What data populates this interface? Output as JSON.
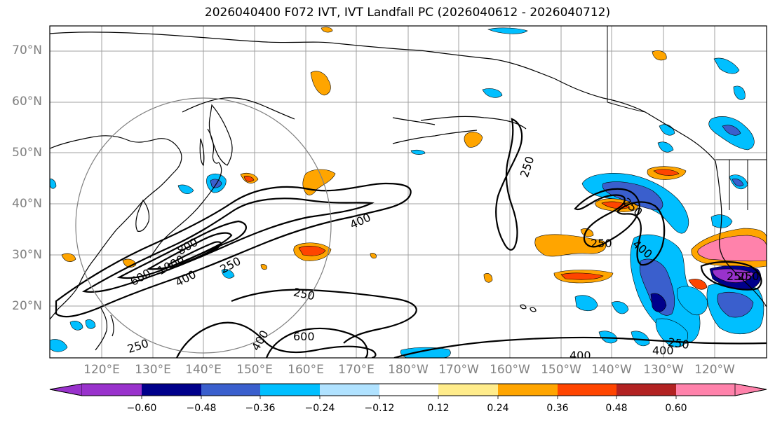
{
  "title": "2026040400 F072 IVT, IVT Landfall PC (2026040612 - 2026040712)",
  "lat_labels": [
    "70°N",
    "60°N",
    "50°N",
    "40°N",
    "30°N",
    "20°N"
  ],
  "lon_labels": [
    "120°E",
    "130°E",
    "140°E",
    "150°E",
    "160°E",
    "170°E",
    "180°W",
    "170°W",
    "160°W",
    "150°W",
    "140°W",
    "130°W",
    "120°W"
  ],
  "colorbar": {
    "ticks": [
      "−0.60",
      "−0.48",
      "−0.36",
      "−0.24",
      "−0.12",
      "0.12",
      "0.24",
      "0.36",
      "0.48",
      "0.60"
    ],
    "colors": [
      "#9932cc",
      "#00008b",
      "#3a5fcd",
      "#00bfff",
      "#b0e2ff",
      "#ffffff",
      "#ffec8b",
      "#ffa500",
      "#ff4500",
      "#b22222",
      "#ff82ab"
    ]
  },
  "contour_labels": [
    "250",
    "400",
    "600",
    "800",
    "1000",
    "400",
    "250",
    "250",
    "400",
    "600",
    "250",
    "250",
    "250",
    "400",
    "400",
    "250",
    "400",
    "250",
    "250"
  ]
}
